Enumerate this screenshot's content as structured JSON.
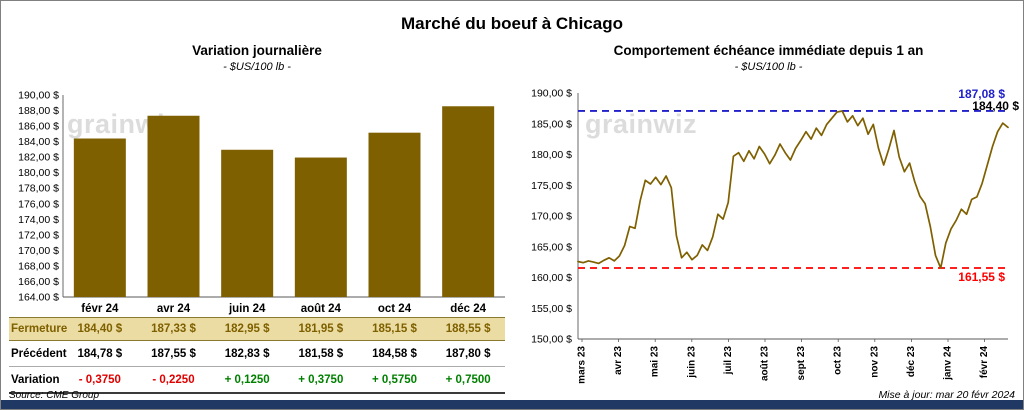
{
  "title": "Marché du boeuf à Chicago",
  "watermark": "grainwiz",
  "chart_data": [
    {
      "type": "bar",
      "title": "Variation journalière",
      "subtitle": "- $US/100 lb -",
      "categories": [
        "févr 24",
        "avr 24",
        "juin 24",
        "août 24",
        "oct 24",
        "déc 24"
      ],
      "values": [
        184.4,
        187.33,
        182.95,
        181.95,
        185.15,
        188.55
      ],
      "ylabel": "$US/100 lb",
      "ylim": [
        164,
        190
      ],
      "ytick_step": 2,
      "tick_suffix": " $",
      "bar_color": "#7F6000",
      "grid": false
    },
    {
      "type": "line",
      "title": "Comportement échéance immédiate depuis 1 an",
      "subtitle": "- $US/100 lb -",
      "x_labels": [
        "mars 23",
        "avr 23",
        "mai 23",
        "juin 23",
        "juil 23",
        "août 23",
        "sept 23",
        "oct 23",
        "nov 23",
        "déc 23",
        "janv 24",
        "févr 24"
      ],
      "values": [
        162.6,
        162.4,
        162.7,
        162.5,
        162.3,
        162.8,
        163.2,
        162.7,
        163.5,
        165.2,
        168.3,
        168.0,
        172.5,
        175.8,
        175.2,
        176.3,
        175.1,
        176.5,
        174.6,
        166.8,
        163.2,
        164.1,
        162.9,
        163.6,
        165.3,
        164.4,
        166.6,
        170.3,
        169.5,
        172.2,
        179.7,
        180.3,
        178.9,
        180.6,
        179.3,
        181.3,
        180.1,
        178.5,
        179.9,
        181.7,
        180.3,
        179.1,
        181.0,
        182.3,
        183.7,
        182.5,
        184.3,
        183.1,
        184.9,
        185.9,
        186.9,
        187.08,
        185.3,
        186.3,
        184.7,
        185.9,
        183.3,
        184.9,
        181.0,
        178.3,
        180.9,
        183.9,
        179.6,
        177.2,
        178.6,
        175.6,
        173.2,
        172.0,
        168.3,
        163.6,
        161.55,
        165.6,
        167.9,
        169.3,
        171.1,
        170.3,
        172.7,
        173.1,
        175.3,
        178.3,
        181.3,
        183.7,
        185.1,
        184.4
      ],
      "ylim": [
        150,
        190
      ],
      "ytick_step": 5,
      "tick_suffix": " $",
      "line_color": "#7F6000",
      "grid": false,
      "hlines": [
        {
          "value": 187.08,
          "label": "187,08 $",
          "color": "#2020CC",
          "style": "dashed"
        },
        {
          "value": 161.55,
          "label": "161,55 $",
          "color": "#FF0000",
          "style": "dashed"
        }
      ],
      "last_value_label": "184,40 $"
    }
  ],
  "table": {
    "months": [
      "févr 24",
      "avr 24",
      "juin 24",
      "août 24",
      "oct 24",
      "déc 24"
    ],
    "fermeture": {
      "label": "Fermeture",
      "values": [
        "184,40 $",
        "187,33 $",
        "182,95 $",
        "181,95 $",
        "185,15 $",
        "188,55 $"
      ]
    },
    "precedent": {
      "label": "Précédent",
      "values": [
        "184,78 $",
        "187,55 $",
        "182,83 $",
        "181,58 $",
        "184,58 $",
        "187,80 $"
      ]
    },
    "variation": {
      "label": "Variation",
      "values": [
        "- 0,3750",
        "- 0,2250",
        "+ 0,1250",
        "+ 0,3750",
        "+ 0,5750",
        "+ 0,7500"
      ]
    }
  },
  "colors": {
    "accent_gold": "#7F6000",
    "max_line_blue": "#2020CC",
    "min_line_red": "#FF0000",
    "negative_red": "#E00000",
    "positive_green": "#008000",
    "fermeture_row_bg": "#EADCA2",
    "bottom_bar_navy": "#1F3864"
  },
  "footer": {
    "source": "Source: CME Group",
    "updated": "Mise à jour: mar 20 févr 2024"
  }
}
